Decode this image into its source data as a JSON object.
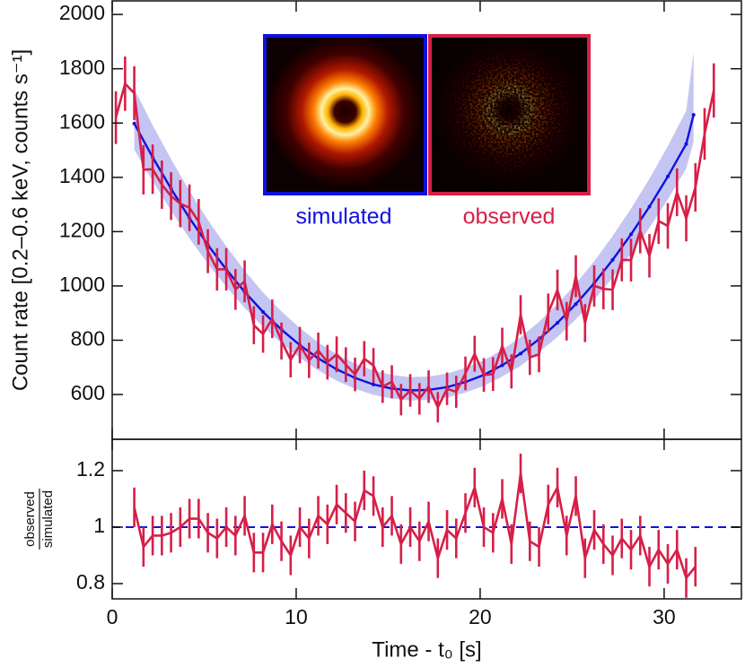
{
  "chart_data": [
    {
      "type": "line",
      "ylabel": "Count rate [0.2–0.6 keV, counts s⁻¹]",
      "xlim": [
        0,
        34.2
      ],
      "ylim": [
        435,
        2050
      ],
      "xticks": [
        0,
        10,
        20,
        30
      ],
      "yticks": [
        600,
        800,
        1000,
        1200,
        1400,
        1600,
        1800,
        2000
      ],
      "series": [
        {
          "name": "simulated",
          "color": "#1010e0",
          "band_color": "#c5c5f3",
          "x": [
            1.2,
            2.2,
            3.2,
            4.2,
            5.2,
            6.2,
            7.2,
            8.2,
            9.2,
            10.2,
            11.2,
            12.2,
            13.2,
            14.2,
            15.2,
            16.2,
            17.2,
            18.2,
            19.2,
            20.2,
            21.2,
            22.2,
            23.2,
            24.2,
            25.2,
            26.2,
            27.2,
            28.2,
            29.2,
            30.2,
            31.2,
            31.6
          ],
          "values": [
            1598,
            1474,
            1358,
            1250,
            1151,
            1061,
            978,
            904,
            839,
            782,
            733,
            693,
            661,
            637,
            622,
            615,
            617,
            627,
            646,
            672,
            708,
            751,
            804,
            864,
            933,
            1010,
            1096,
            1190,
            1292,
            1403,
            1523,
            1630
          ],
          "band_lower": [
            1502,
            1386,
            1277,
            1175,
            1082,
            997,
            919,
            850,
            789,
            735,
            689,
            651,
            621,
            599,
            585,
            578,
            580,
            589,
            607,
            632,
            666,
            706,
            756,
            812,
            877,
            949,
            1030,
            1119,
            1214,
            1319,
            1432,
            1532
          ],
          "band_upper": [
            1726,
            1592,
            1467,
            1350,
            1243,
            1146,
            1056,
            976,
            906,
            845,
            792,
            748,
            714,
            688,
            672,
            664,
            666,
            677,
            698,
            726,
            765,
            811,
            868,
            933,
            1008,
            1091,
            1184,
            1285,
            1395,
            1515,
            1645,
            1860
          ]
        },
        {
          "name": "observed",
          "color": "#d61f48",
          "x": [
            0.2,
            0.7,
            1.2,
            1.7,
            2.2,
            2.7,
            3.2,
            3.7,
            4.2,
            4.7,
            5.2,
            5.7,
            6.2,
            6.7,
            7.2,
            7.7,
            8.2,
            8.7,
            9.2,
            9.7,
            10.2,
            10.7,
            11.2,
            11.7,
            12.2,
            12.7,
            13.2,
            13.7,
            14.2,
            14.7,
            15.2,
            15.7,
            16.2,
            16.7,
            17.2,
            17.7,
            18.2,
            18.7,
            19.2,
            19.7,
            20.2,
            20.7,
            21.2,
            21.7,
            22.2,
            22.7,
            23.2,
            23.7,
            24.2,
            24.7,
            25.2,
            25.7,
            26.2,
            26.7,
            27.2,
            27.7,
            28.2,
            28.7,
            29.2,
            29.7,
            30.2,
            30.7,
            31.2,
            31.7,
            32.2,
            32.7
          ],
          "values": [
            1620,
            1745,
            1710,
            1428,
            1430,
            1373,
            1331,
            1303,
            1288,
            1236,
            1128,
            1061,
            1061,
            987,
            1017,
            855,
            823,
            879,
            797,
            728,
            782,
            726,
            762,
            719,
            748,
            710,
            674,
            732,
            707,
            629,
            647,
            581,
            615,
            584,
            629,
            553,
            621,
            610,
            678,
            750,
            672,
            675,
            779,
            685,
            894,
            737,
            748,
            900,
            985,
            870,
            1036,
            863,
            1000,
            989,
            986,
            1096,
            1095,
            1203,
            1111,
            1239,
            1221,
            1345,
            1249,
            1363,
            1560,
            1720
          ],
          "errors": [
            97,
            100,
            99,
            91,
            91,
            89,
            88,
            87,
            86,
            84,
            81,
            78,
            78,
            75,
            77,
            70,
            69,
            71,
            68,
            65,
            67,
            65,
            66,
            64,
            66,
            64,
            62,
            65,
            64,
            60,
            61,
            58,
            60,
            58,
            60,
            56,
            60,
            59,
            62,
            66,
            62,
            62,
            67,
            63,
            72,
            65,
            66,
            72,
            75,
            71,
            77,
            70,
            76,
            75,
            75,
            79,
            79,
            83,
            80,
            84,
            84,
            88,
            85,
            89,
            95,
            100
          ]
        }
      ]
    },
    {
      "type": "line",
      "ylabel": {
        "numerator": "observed",
        "denominator": "simulated"
      },
      "xlabel": "Time - t₀ [s]",
      "xlim": [
        0,
        34.2
      ],
      "ylim": [
        0.746,
        1.311
      ],
      "xticks": [
        0,
        10,
        20,
        30
      ],
      "yticks": [
        0.8,
        1,
        1.2
      ],
      "reference_line": 1,
      "reference_color": "#1010e0",
      "series": [
        {
          "color": "#d61f48",
          "error": 0.07,
          "x": [
            1.2,
            1.7,
            2.2,
            2.7,
            3.2,
            3.7,
            4.2,
            4.7,
            5.2,
            5.7,
            6.2,
            6.7,
            7.2,
            7.7,
            8.2,
            8.7,
            9.2,
            9.7,
            10.2,
            10.7,
            11.2,
            11.7,
            12.2,
            12.7,
            13.2,
            13.7,
            14.2,
            14.7,
            15.2,
            15.7,
            16.2,
            16.7,
            17.2,
            17.7,
            18.2,
            18.7,
            19.2,
            19.7,
            20.2,
            20.7,
            21.2,
            21.7,
            22.2,
            22.7,
            23.2,
            23.7,
            24.2,
            24.7,
            25.2,
            25.7,
            26.2,
            26.7,
            27.2,
            27.7,
            28.2,
            28.7,
            29.2,
            29.7,
            30.2,
            30.7,
            31.2,
            31.7
          ],
          "values": [
            1.07,
            0.93,
            0.97,
            0.97,
            0.98,
            1.0,
            1.03,
            1.03,
            0.98,
            0.96,
            1.0,
            0.97,
            1.04,
            0.91,
            0.91,
            1.01,
            0.95,
            0.9,
            1.0,
            0.96,
            1.04,
            1.01,
            1.08,
            1.05,
            1.02,
            1.13,
            1.11,
            1.0,
            1.04,
            0.94,
            1.0,
            0.95,
            1.02,
            0.89,
            0.99,
            0.96,
            1.05,
            1.14,
            1.0,
            0.98,
            1.1,
            0.94,
            1.19,
            0.95,
            0.93,
            1.08,
            1.14,
            0.97,
            1.11,
            0.89,
            0.99,
            0.94,
            0.9,
            0.96,
            0.92,
            0.97,
            0.86,
            0.92,
            0.87,
            0.92,
            0.82,
            0.86
          ]
        }
      ]
    }
  ]
}
